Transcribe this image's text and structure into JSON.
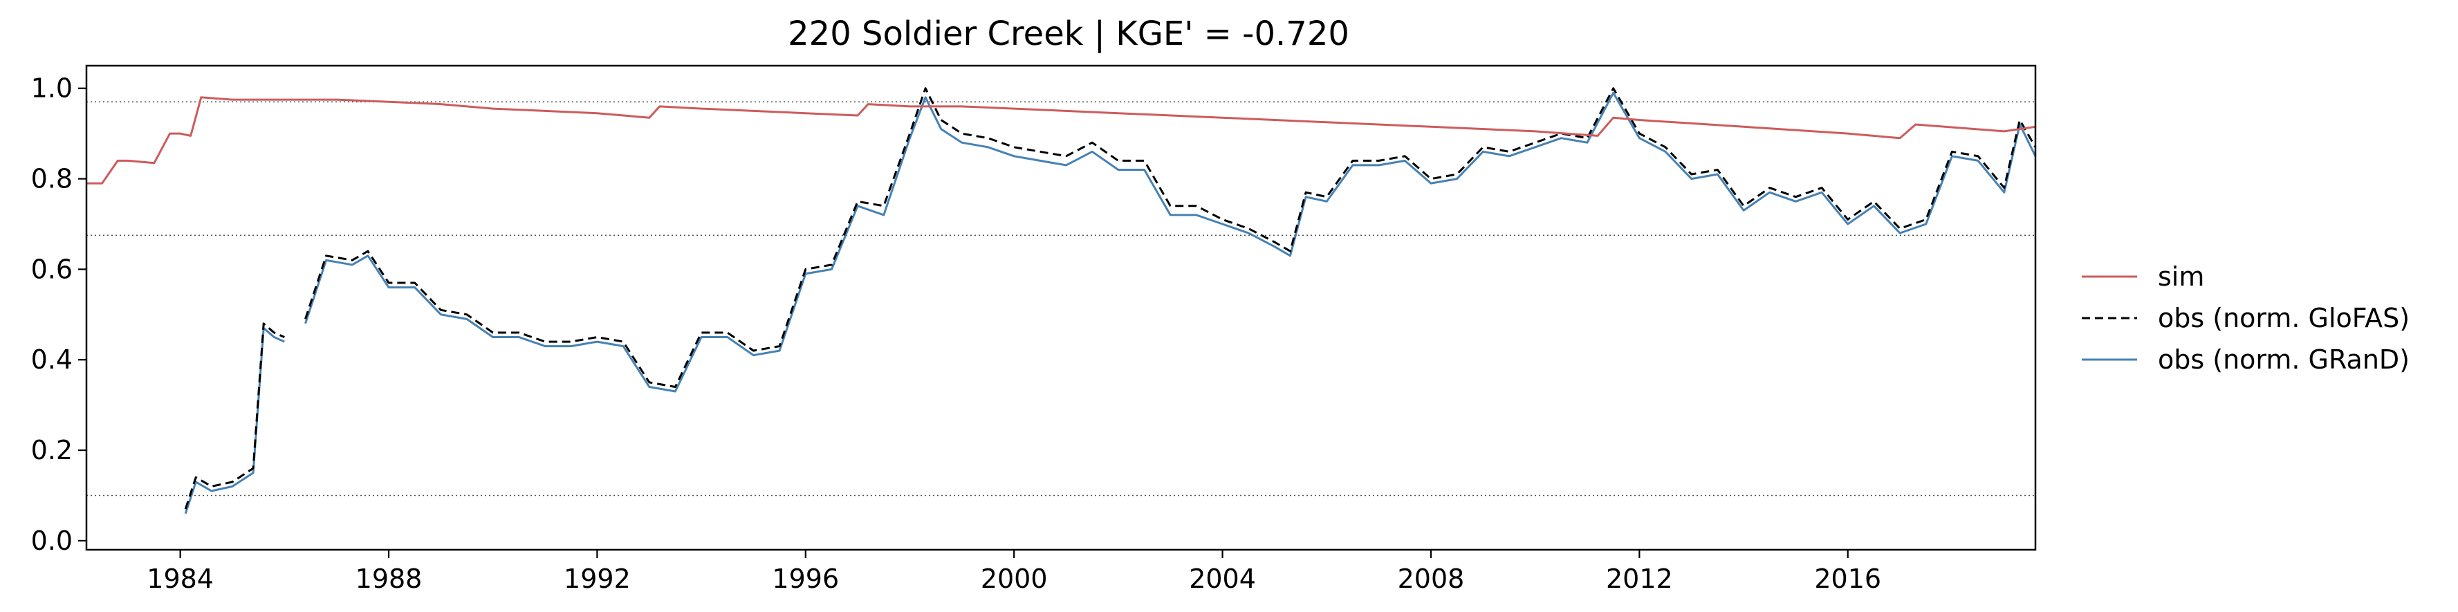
{
  "chart_data": {
    "type": "line",
    "title": "220  Soldier Creek | KGE' = -0.720",
    "xlabel": "",
    "ylabel": "",
    "xlim": [
      1982.2,
      2019.6
    ],
    "ylim": [
      -0.02,
      1.05
    ],
    "x_ticks": [
      1984,
      1988,
      1992,
      1996,
      2000,
      2004,
      2008,
      2012,
      2016
    ],
    "x_tick_labels": [
      "1984",
      "1988",
      "1992",
      "1996",
      "2000",
      "2004",
      "2008",
      "2012",
      "2016"
    ],
    "y_ticks": [
      0.0,
      0.2,
      0.4,
      0.6,
      0.8,
      1.0
    ],
    "y_tick_labels": [
      "0.0",
      "0.2",
      "0.4",
      "0.6",
      "0.8",
      "1.0"
    ],
    "reference_lines": [
      0.1,
      0.675,
      0.97
    ],
    "grid": false,
    "legend_position": "right, outside plot",
    "colors": {
      "sim": "#cd5c5c",
      "obs_glofas": "#000000",
      "obs_grand": "#4682b4",
      "reference": "#555555"
    },
    "series": [
      {
        "name": "sim",
        "style": "solid",
        "x": [
          1982.2,
          1982.5,
          1982.8,
          1983.0,
          1983.5,
          1983.8,
          1984.0,
          1984.2,
          1984.4,
          1985.0,
          1986.0,
          1987.0,
          1988.0,
          1989.0,
          1990.0,
          1991.0,
          1992.0,
          1993.0,
          1993.2,
          1994.0,
          1995.0,
          1996.0,
          1997.0,
          1997.2,
          1998.0,
          1999.0,
          2000.0,
          2002.0,
          2004.0,
          2006.0,
          2008.0,
          2010.0,
          2011.2,
          2011.5,
          2012.0,
          2014.0,
          2016.0,
          2017.0,
          2017.3,
          2019.0,
          2019.6
        ],
        "y": [
          0.79,
          0.79,
          0.84,
          0.84,
          0.835,
          0.9,
          0.9,
          0.895,
          0.98,
          0.975,
          0.975,
          0.975,
          0.97,
          0.965,
          0.955,
          0.95,
          0.945,
          0.935,
          0.96,
          0.955,
          0.95,
          0.945,
          0.94,
          0.965,
          0.96,
          0.96,
          0.955,
          0.945,
          0.935,
          0.925,
          0.915,
          0.905,
          0.895,
          0.935,
          0.93,
          0.915,
          0.9,
          0.89,
          0.92,
          0.905,
          0.915
        ]
      },
      {
        "name": "obs (norm. GloFAS)",
        "style": "dashed",
        "x": [
          1984.1,
          1984.3,
          1984.6,
          1985.0,
          1985.4,
          1985.6,
          1985.8,
          1986.0,
          1986.2,
          1986.4,
          1986.8,
          1987.3,
          1987.6,
          1988.0,
          1988.5,
          1989.0,
          1989.5,
          1990.0,
          1990.5,
          1991.0,
          1991.5,
          1992.0,
          1992.5,
          1993.0,
          1993.5,
          1994.0,
          1994.5,
          1995.0,
          1995.5,
          1996.0,
          1996.5,
          1997.0,
          1997.5,
          1998.0,
          1998.3,
          1998.6,
          1999.0,
          1999.5,
          2000.0,
          2000.5,
          2001.0,
          2001.5,
          2002.0,
          2002.5,
          2003.0,
          2003.5,
          2004.0,
          2004.5,
          2005.0,
          2005.3,
          2005.6,
          2006.0,
          2006.5,
          2007.0,
          2007.5,
          2008.0,
          2008.5,
          2009.0,
          2009.5,
          2010.0,
          2010.5,
          2011.0,
          2011.5,
          2012.0,
          2012.5,
          2013.0,
          2013.5,
          2014.0,
          2014.5,
          2015.0,
          2015.5,
          2016.0,
          2016.5,
          2017.0,
          2017.5,
          2018.0,
          2018.5,
          2019.0,
          2019.3,
          2019.6
        ],
        "y": [
          0.07,
          0.14,
          0.12,
          0.13,
          0.16,
          0.48,
          0.46,
          0.45,
          null,
          0.49,
          0.63,
          0.62,
          0.64,
          0.57,
          0.57,
          0.51,
          0.5,
          0.46,
          0.46,
          0.44,
          0.44,
          0.45,
          0.44,
          0.35,
          0.34,
          0.46,
          0.46,
          0.42,
          0.43,
          0.6,
          0.61,
          0.75,
          0.74,
          0.9,
          1.0,
          0.93,
          0.9,
          0.89,
          0.87,
          0.86,
          0.85,
          0.88,
          0.84,
          0.84,
          0.74,
          0.74,
          0.71,
          0.69,
          0.66,
          0.64,
          0.77,
          0.76,
          0.84,
          0.84,
          0.85,
          0.8,
          0.81,
          0.87,
          0.86,
          0.88,
          0.9,
          0.89,
          1.0,
          0.9,
          0.87,
          0.81,
          0.82,
          0.74,
          0.78,
          0.76,
          0.78,
          0.71,
          0.75,
          0.69,
          0.71,
          0.86,
          0.85,
          0.78,
          0.93,
          0.87
        ]
      },
      {
        "name": "obs (norm. GRanD)",
        "style": "solid",
        "x": [
          1984.1,
          1984.3,
          1984.6,
          1985.0,
          1985.4,
          1985.6,
          1985.8,
          1986.0,
          1986.2,
          1986.4,
          1986.8,
          1987.3,
          1987.6,
          1988.0,
          1988.5,
          1989.0,
          1989.5,
          1990.0,
          1990.5,
          1991.0,
          1991.5,
          1992.0,
          1992.5,
          1993.0,
          1993.5,
          1994.0,
          1994.5,
          1995.0,
          1995.5,
          1996.0,
          1996.5,
          1997.0,
          1997.5,
          1998.0,
          1998.3,
          1998.6,
          1999.0,
          1999.5,
          2000.0,
          2000.5,
          2001.0,
          2001.5,
          2002.0,
          2002.5,
          2003.0,
          2003.5,
          2004.0,
          2004.5,
          2005.0,
          2005.3,
          2005.6,
          2006.0,
          2006.5,
          2007.0,
          2007.5,
          2008.0,
          2008.5,
          2009.0,
          2009.5,
          2010.0,
          2010.5,
          2011.0,
          2011.5,
          2012.0,
          2012.5,
          2013.0,
          2013.5,
          2014.0,
          2014.5,
          2015.0,
          2015.5,
          2016.0,
          2016.5,
          2017.0,
          2017.5,
          2018.0,
          2018.5,
          2019.0,
          2019.3,
          2019.6
        ],
        "y": [
          0.06,
          0.13,
          0.11,
          0.12,
          0.15,
          0.47,
          0.45,
          0.44,
          null,
          0.48,
          0.62,
          0.61,
          0.63,
          0.56,
          0.56,
          0.5,
          0.49,
          0.45,
          0.45,
          0.43,
          0.43,
          0.44,
          0.43,
          0.34,
          0.33,
          0.45,
          0.45,
          0.41,
          0.42,
          0.59,
          0.6,
          0.74,
          0.72,
          0.89,
          0.98,
          0.91,
          0.88,
          0.87,
          0.85,
          0.84,
          0.83,
          0.86,
          0.82,
          0.82,
          0.72,
          0.72,
          0.7,
          0.68,
          0.65,
          0.63,
          0.76,
          0.75,
          0.83,
          0.83,
          0.84,
          0.79,
          0.8,
          0.86,
          0.85,
          0.87,
          0.89,
          0.88,
          0.99,
          0.89,
          0.86,
          0.8,
          0.81,
          0.73,
          0.77,
          0.75,
          0.77,
          0.7,
          0.74,
          0.68,
          0.7,
          0.85,
          0.84,
          0.77,
          0.92,
          0.85
        ]
      }
    ]
  }
}
